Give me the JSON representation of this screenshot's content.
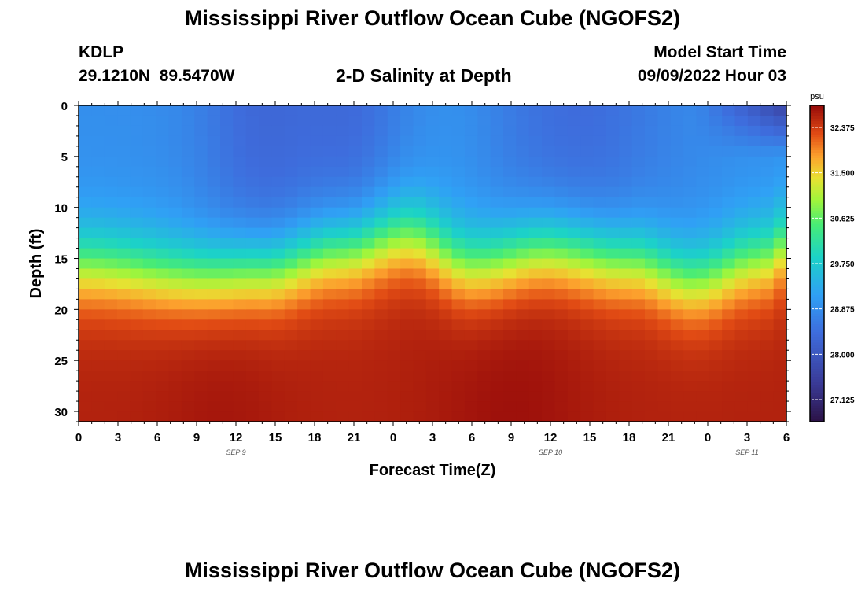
{
  "header": {
    "title": "Mississippi River Outflow Ocean Cube (NGOFS2)",
    "station_id": "KDLP",
    "coordinates": "29.1210N  89.5470W",
    "subtitle": "2-D Salinity at Depth",
    "model_start_label": "Model Start Time",
    "model_start_value": "09/09/2022 Hour 03"
  },
  "footer": {
    "title": "Mississippi River Outflow Ocean Cube (NGOFS2)"
  },
  "chart_data": {
    "type": "heatmap",
    "title": "2-D Salinity at Depth",
    "xlabel": "Forecast Time(Z)",
    "ylabel": "Depth (ft)",
    "x_tick_labels": [
      "0",
      "3",
      "6",
      "9",
      "12",
      "15",
      "18",
      "21",
      "0",
      "3",
      "6",
      "9",
      "12",
      "15",
      "18",
      "21",
      "0",
      "3",
      "6"
    ],
    "x_hours": [
      0,
      3,
      6,
      9,
      12,
      15,
      18,
      21,
      24,
      27,
      30,
      33,
      36,
      39,
      42,
      45,
      48,
      51,
      54
    ],
    "xlim": [
      0,
      54
    ],
    "date_labels": [
      {
        "text": "SEP 9",
        "hour": 12
      },
      {
        "text": "SEP 10",
        "hour": 36
      },
      {
        "text": "SEP 11",
        "hour": 51
      }
    ],
    "y_ticks": [
      0,
      5,
      10,
      15,
      20,
      25,
      30
    ],
    "ylim": [
      0,
      31
    ],
    "y_inverted": true,
    "colorbar": {
      "unit": "psu",
      "min": 26.7,
      "max": 32.8,
      "ticks": [
        "32.375",
        "31.500",
        "30.625",
        "29.750",
        "28.875",
        "28.000",
        "27.125"
      ],
      "tick_values": [
        32.375,
        31.5,
        30.625,
        29.75,
        28.875,
        28.0,
        27.125
      ]
    },
    "field_model": {
      "description_note": "salinity (psu) vs depth profile",
      "surface_salinity": 28.9,
      "bottom_salinity": 32.6,
      "halocline_depth_by_hour": [
        {
          "hour": 0,
          "depth": 15.5
        },
        {
          "hour": 9,
          "depth": 16.5
        },
        {
          "hour": 14,
          "depth": 16.0
        },
        {
          "hour": 20,
          "depth": 14.0
        },
        {
          "hour": 25,
          "depth": 12.5
        },
        {
          "hour": 30,
          "depth": 15.5
        },
        {
          "hour": 36,
          "depth": 14.0
        },
        {
          "hour": 42,
          "depth": 15.0
        },
        {
          "hour": 47,
          "depth": 17.0
        },
        {
          "hour": 52,
          "depth": 15.0
        },
        {
          "hour": 54,
          "depth": 13.5
        }
      ]
    }
  }
}
